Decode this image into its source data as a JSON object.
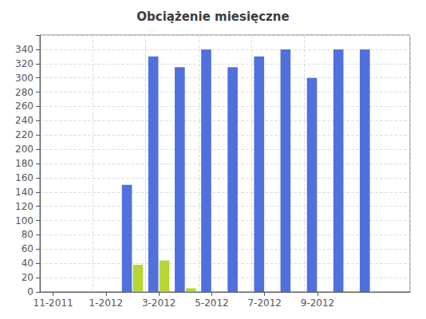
{
  "chart_data": {
    "type": "bar",
    "title": "Obciążenie miesięczne",
    "categories": [
      "11-2011",
      null,
      "1-2012",
      null,
      "3-2012",
      null,
      "5-2012",
      null,
      "7-2012",
      null,
      "9-2012",
      null,
      null,
      null
    ],
    "series": [
      {
        "values": [
          null,
          null,
          null,
          150,
          330,
          315,
          340,
          315,
          330,
          340,
          300,
          340,
          340,
          null
        ]
      },
      {
        "values": [
          null,
          null,
          null,
          38,
          44,
          5,
          0,
          0,
          0,
          0,
          0,
          0,
          0,
          null
        ]
      }
    ],
    "ylim": [
      0,
      360
    ],
    "yticks": [
      0,
      20,
      40,
      60,
      80,
      100,
      120,
      140,
      160,
      180,
      200,
      220,
      240,
      260,
      280,
      300,
      320,
      340
    ],
    "grid": true
  }
}
